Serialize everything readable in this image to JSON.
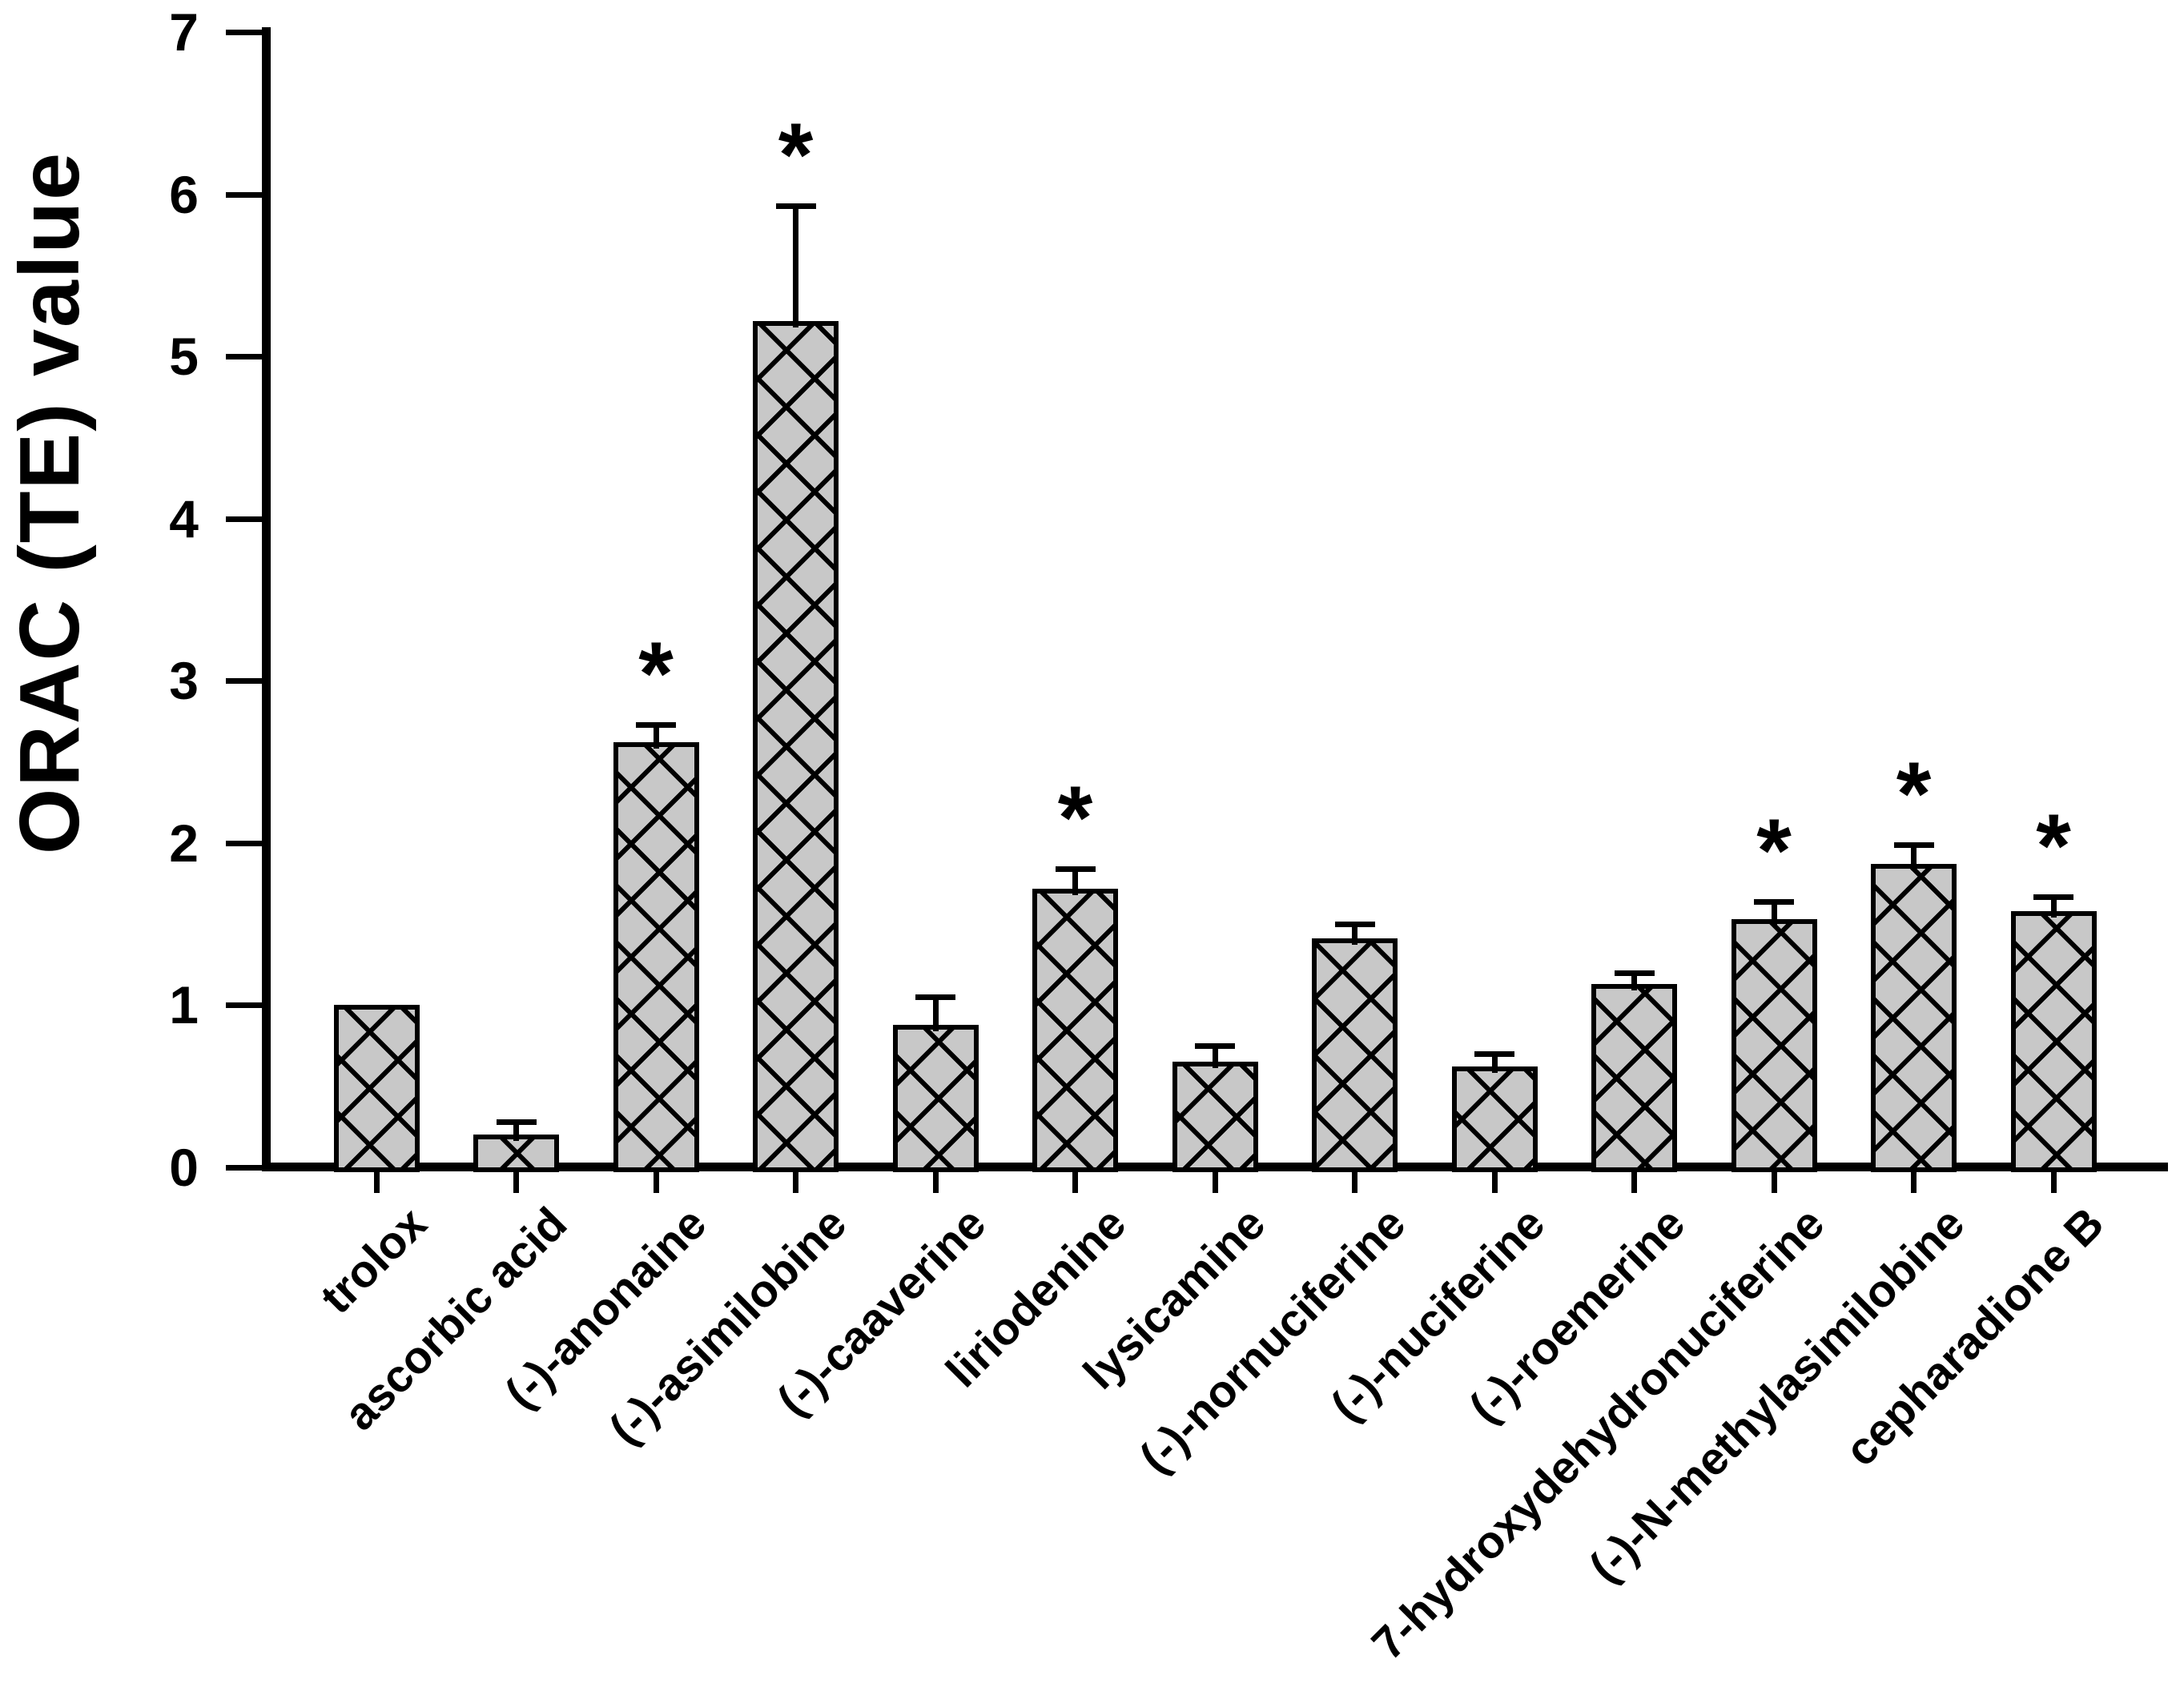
{
  "figure": {
    "significance_marker": "*"
  },
  "chart_data": {
    "type": "bar",
    "title": "",
    "xlabel": "",
    "ylabel": "ORAC (TE) value",
    "ylim": [
      0,
      7
    ],
    "y_ticks": [
      0,
      1,
      2,
      3,
      4,
      5,
      6,
      7
    ],
    "grid": false,
    "legend": null,
    "bar_fill_color": "#c8c8c8",
    "bar_pattern": "black diagonal crosshatch",
    "axis_color": "#000000",
    "categories": [
      "trolox",
      "ascorbic acid",
      "(-)-anonaine",
      "(-)-asimilobine",
      "(-)-caaverine",
      "liriodenine",
      "lysicamine",
      "(-)-nornuciferine",
      "(-)-nuciferine",
      "(-)-roemerine",
      "7-hydroxydehydronuciferine",
      "(-)-N-methylasimilobine",
      "cepharadione B"
    ],
    "values": [
      1.0,
      0.2,
      2.62,
      5.22,
      0.88,
      1.72,
      0.65,
      1.41,
      0.62,
      1.13,
      1.53,
      1.87,
      1.58
    ],
    "error_plus": [
      0,
      0.08,
      0.11,
      0.71,
      0.17,
      0.12,
      0.1,
      0.09,
      0.08,
      0.07,
      0.11,
      0.12,
      0.09
    ],
    "significant": [
      false,
      false,
      true,
      true,
      false,
      true,
      false,
      false,
      false,
      false,
      true,
      true,
      true
    ]
  }
}
